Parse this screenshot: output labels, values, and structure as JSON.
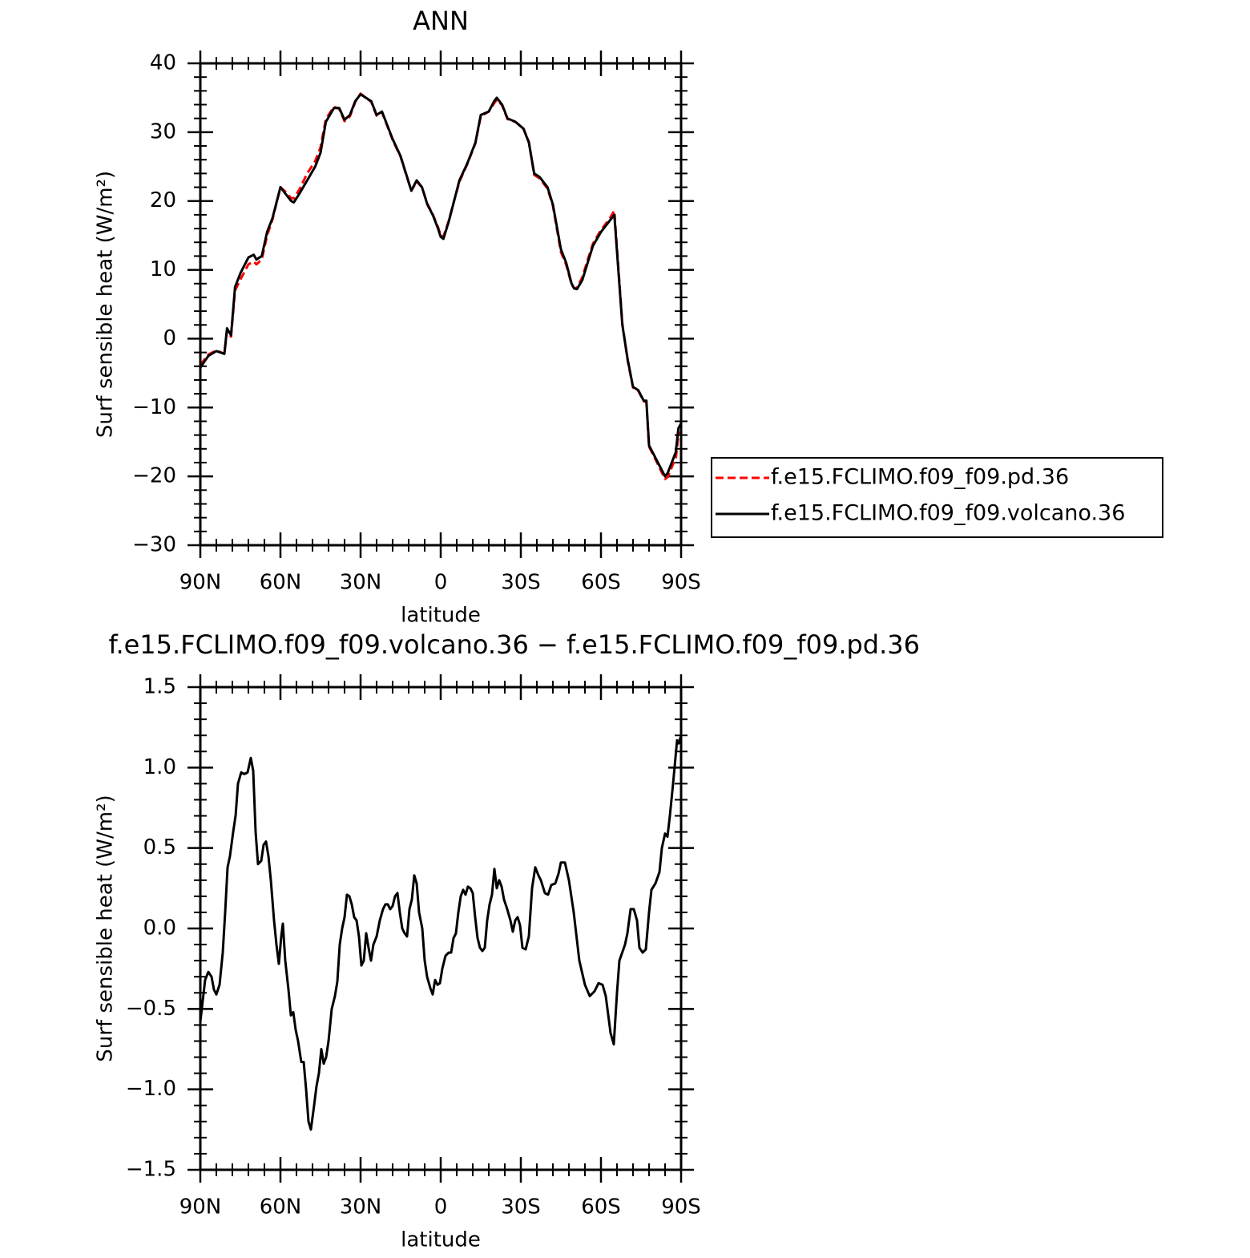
{
  "chart_data": [
    {
      "type": "line",
      "title": "ANN",
      "xlabel": "latitude",
      "ylabel": "Surf sensible heat (W/m²)",
      "xlim": [
        90,
        -90
      ],
      "xticks": [
        {
          "value": 90,
          "label": "90N"
        },
        {
          "value": 60,
          "label": "60N"
        },
        {
          "value": 30,
          "label": "30N"
        },
        0,
        {
          "value": -30,
          "label": "30S"
        },
        {
          "value": -60,
          "label": "60S"
        },
        {
          "value": -90,
          "label": "90S"
        }
      ],
      "ylim": [
        -30,
        40
      ],
      "yticks": [
        {
          "value": -30,
          "label": "−30"
        },
        {
          "value": -20,
          "label": "−20"
        },
        {
          "value": -10,
          "label": "−10"
        },
        0,
        10,
        20,
        30,
        40
      ],
      "legend": "right",
      "x": [
        90,
        87,
        84,
        81,
        80,
        78.5,
        77,
        75,
        72,
        70,
        69,
        67,
        65,
        63,
        60,
        58,
        56,
        55,
        53,
        50,
        47,
        45,
        43,
        40,
        38,
        36,
        34,
        32,
        30,
        28,
        26,
        24,
        22,
        20,
        18,
        15,
        13,
        11,
        9,
        7,
        5,
        3,
        1,
        0,
        -1,
        -3,
        -5,
        -7,
        -10,
        -13,
        -15,
        -18,
        -20,
        -21,
        -23,
        -25,
        -28,
        -31,
        -33,
        -35,
        -37,
        -40,
        -42,
        -45,
        -47,
        -49,
        -50,
        -51,
        -53,
        -55,
        -57,
        -60,
        -63,
        -65,
        -68,
        -70,
        -72,
        -74,
        -76,
        -77,
        -78,
        -80,
        -82,
        -84,
        -85,
        -87,
        -88,
        -89,
        -90
      ],
      "series": [
        {
          "name": "f.e15.FCLIMO.f09_f09.pd.36",
          "color": "#ff0000",
          "line_style": "dashed",
          "values": [
            -3.8,
            -2.3,
            -1.7,
            -2.2,
            1.2,
            0.3,
            7.0,
            8.6,
            10.8,
            11.2,
            10.8,
            11.5,
            15.0,
            17.3,
            22,
            21.3,
            20.4,
            20.4,
            21.6,
            24.0,
            25.8,
            27.8,
            31.9,
            33.7,
            33.4,
            31.6,
            32.3,
            34.4,
            35.6,
            35,
            34.4,
            32.4,
            32.9,
            30.9,
            28.9,
            26.4,
            23.9,
            21.5,
            22.8,
            22,
            19.6,
            18.1,
            16.2,
            15.0,
            14.8,
            17.1,
            20,
            22.8,
            25.4,
            28.4,
            32.3,
            33,
            34.2,
            34.7,
            33.9,
            31.9,
            31.5,
            30.5,
            28.6,
            23.8,
            23.3,
            21.8,
            19.3,
            12.6,
            10.7,
            7.9,
            7.3,
            7.4,
            8.9,
            11.4,
            13.8,
            15.8,
            17.3,
            18.6,
            2.2,
            -3.2,
            -7.1,
            -7.6,
            -9.1,
            -9.2,
            -15.7,
            -17.2,
            -18.8,
            -20.4,
            -20.1,
            -18.2,
            -17.5,
            -14,
            -13.5
          ]
        },
        {
          "name": "f.e15.FCLIMO.f09_f09.volcano.36",
          "color": "#000000",
          "line_style": "solid",
          "values": [
            -4.2,
            -2.5,
            -1.8,
            -2.2,
            1.5,
            0.5,
            7.5,
            9.5,
            11.8,
            12.2,
            11.5,
            12,
            15.5,
            17.5,
            22,
            21,
            20,
            19.8,
            21,
            23,
            25,
            27,
            31.5,
            33.5,
            33.5,
            31.8,
            32.5,
            34.5,
            35.5,
            35,
            34.5,
            32.5,
            33,
            31,
            29,
            26.5,
            24,
            21.5,
            23,
            22,
            19.5,
            18,
            16,
            14.8,
            14.5,
            17,
            20,
            23,
            25.5,
            28.5,
            32.5,
            33,
            34.5,
            35,
            34,
            32,
            31.5,
            30.5,
            28.5,
            24,
            23.5,
            22,
            19.5,
            13,
            11,
            8,
            7.3,
            7.2,
            8.5,
            11,
            13.5,
            15.5,
            17,
            18,
            2,
            -3,
            -7,
            -7.5,
            -9,
            -9,
            -15.5,
            -17,
            -18.5,
            -20,
            -19.5,
            -17.5,
            -16.5,
            -13,
            -12.3
          ]
        }
      ]
    },
    {
      "type": "line",
      "title": "f.e15.FCLIMO.f09_f09.volcano.36 − f.e15.FCLIMO.f09_f09.pd.36",
      "xlabel": "latitude",
      "ylabel": "Surf sensible heat (W/m²)",
      "xlim": [
        90,
        -90
      ],
      "xticks": [
        {
          "value": 90,
          "label": "90N"
        },
        {
          "value": 60,
          "label": "60N"
        },
        {
          "value": 30,
          "label": "30N"
        },
        0,
        {
          "value": -30,
          "label": "30S"
        },
        {
          "value": -60,
          "label": "60S"
        },
        {
          "value": -90,
          "label": "90S"
        }
      ],
      "ylim": [
        -1.5,
        1.5
      ],
      "yticks": [
        {
          "value": -1.5,
          "label": "−1.5"
        },
        {
          "value": -1,
          "label": "−1.0"
        },
        {
          "value": -0.5,
          "label": "−0.5"
        },
        {
          "value": 0,
          "label": "0.0"
        },
        0.5,
        {
          "value": 1,
          "label": "1.0"
        },
        1.5
      ],
      "x": [
        90,
        89.1,
        88.2,
        87,
        85.8,
        84.9,
        84,
        82.8,
        81.6,
        80.7,
        79.8,
        78.9,
        77.7,
        76.8,
        75.9,
        74.7,
        73.5,
        72.3,
        71.1,
        70.2,
        69.3,
        68.4,
        67.2,
        66.3,
        65.4,
        64.5,
        63.6,
        62.4,
        61.5,
        60.6,
        59.7,
        59.1,
        58.2,
        57,
        56.1,
        55.2,
        54.3,
        53.4,
        52.2,
        51.3,
        50.4,
        49.5,
        48.6,
        47.4,
        46.5,
        45.6,
        44.7,
        43.8,
        42.9,
        42,
        40.8,
        39.6,
        38.7,
        37.8,
        36.9,
        36,
        35.1,
        34.2,
        33.3,
        32.4,
        31.5,
        30.6,
        29.7,
        28.8,
        27.9,
        27,
        26.1,
        25.2,
        24,
        22.8,
        21.6,
        20.7,
        19.8,
        18.9,
        18,
        17.1,
        16.2,
        15.3,
        14.4,
        13.5,
        12.6,
        11.7,
        10.8,
        9.9,
        9,
        8.1,
        6.9,
        6,
        5.1,
        3.9,
        3,
        2.1,
        1.2,
        0.3,
        -0.6,
        -1.8,
        -3,
        -3.9,
        -4.8,
        -5.7,
        -6.6,
        -7.5,
        -8.4,
        -9.3,
        -10.2,
        -11.1,
        -12,
        -12.9,
        -13.8,
        -14.7,
        -15.6,
        -16.5,
        -17.4,
        -18.3,
        -19.2,
        -20.1,
        -21,
        -21.9,
        -22.8,
        -23.7,
        -24.9,
        -26.1,
        -27,
        -27.9,
        -28.8,
        -29.7,
        -30.6,
        -31.8,
        -33,
        -34.2,
        -35.4,
        -36.6,
        -37.5,
        -39,
        -40.2,
        -41.4,
        -42.9,
        -44.1,
        -45,
        -46.5,
        -48,
        -49.8,
        -51.9,
        -54,
        -55.8,
        -57.6,
        -59.1,
        -60.6,
        -61.8,
        -63.6,
        -64.8,
        -66,
        -66.9,
        -69,
        -69.9,
        -71.1,
        -72.3,
        -73.5,
        -74.4,
        -75.6,
        -76.8,
        -78,
        -78.9,
        -80.4,
        -81.9,
        -82.8,
        -84,
        -84.9,
        -85.8,
        -87,
        -88.5,
        -89.1,
        -90
      ],
      "series": [
        {
          "color": "#000000",
          "line_style": "solid",
          "values": [
            -0.58,
            -0.45,
            -0.32,
            -0.27,
            -0.3,
            -0.38,
            -0.41,
            -0.35,
            -0.15,
            0.1,
            0.38,
            0.45,
            0.6,
            0.7,
            0.9,
            0.97,
            0.96,
            0.97,
            1.06,
            0.98,
            0.6,
            0.4,
            0.42,
            0.52,
            0.54,
            0.45,
            0.3,
            0.05,
            -0.1,
            -0.22,
            -0.05,
            0.03,
            -0.2,
            -0.38,
            -0.54,
            -0.52,
            -0.63,
            -0.7,
            -0.83,
            -0.83,
            -1.0,
            -1.2,
            -1.25,
            -1.1,
            -0.98,
            -0.9,
            -0.75,
            -0.84,
            -0.8,
            -0.7,
            -0.5,
            -0.42,
            -0.33,
            -0.1,
            0.0,
            0.07,
            0.21,
            0.2,
            0.15,
            0.07,
            0.05,
            -0.05,
            -0.23,
            -0.2,
            -0.03,
            -0.12,
            -0.2,
            -0.1,
            -0.05,
            0.05,
            0.12,
            0.15,
            0.15,
            0.12,
            0.14,
            0.2,
            0.22,
            0.1,
            0.0,
            -0.03,
            -0.05,
            0.12,
            0.18,
            0.33,
            0.28,
            0.1,
            0.0,
            -0.2,
            -0.3,
            -0.37,
            -0.41,
            -0.32,
            -0.35,
            -0.34,
            -0.25,
            -0.17,
            -0.15,
            -0.15,
            -0.06,
            -0.03,
            0.1,
            0.2,
            0.24,
            0.21,
            0.26,
            0.25,
            0.22,
            0.07,
            -0.06,
            -0.12,
            -0.14,
            -0.12,
            0.05,
            0.15,
            0.21,
            0.37,
            0.25,
            0.3,
            0.26,
            0.18,
            0.12,
            0.05,
            -0.02,
            0.05,
            0.07,
            0.02,
            -0.12,
            -0.13,
            -0.05,
            0.25,
            0.38,
            0.33,
            0.3,
            0.22,
            0.21,
            0.27,
            0.28,
            0.34,
            0.41,
            0.41,
            0.3,
            0.1,
            -0.2,
            -0.35,
            -0.42,
            -0.39,
            -0.34,
            -0.35,
            -0.42,
            -0.65,
            -0.72,
            -0.4,
            -0.2,
            -0.1,
            -0.03,
            0.12,
            0.12,
            0.05,
            -0.12,
            -0.15,
            -0.13,
            0.1,
            0.24,
            0.28,
            0.35,
            0.5,
            0.59,
            0.57,
            0.7,
            0.9,
            1.17,
            1.15,
            1.2
          ]
        }
      ]
    }
  ]
}
